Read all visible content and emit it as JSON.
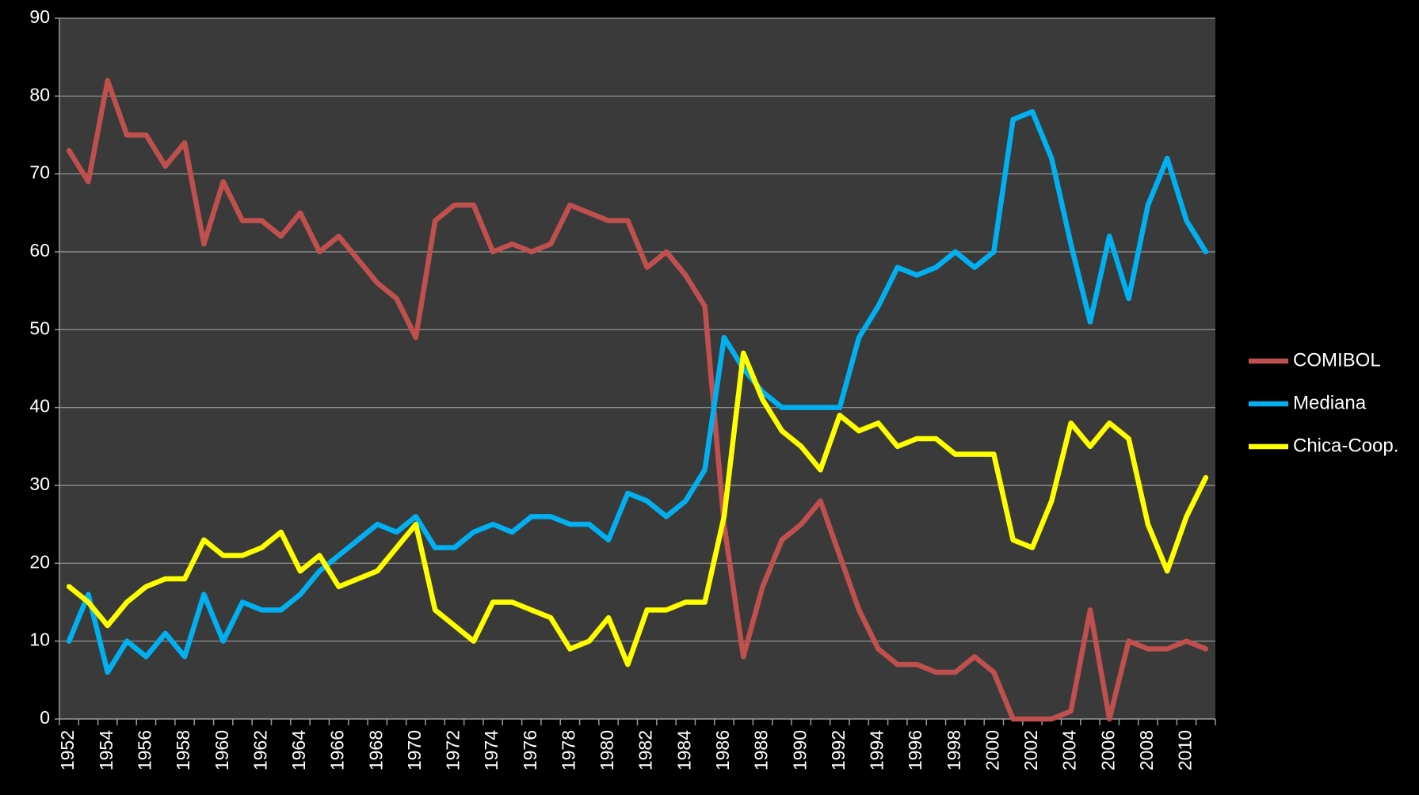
{
  "chart_data": {
    "type": "line",
    "categories": [
      "1952",
      null,
      "1954",
      null,
      "1956",
      null,
      "1958",
      null,
      "1960",
      null,
      "1962",
      null,
      "1964",
      null,
      "1966",
      null,
      "1968",
      null,
      "1970",
      null,
      "1972",
      null,
      "1974",
      null,
      "1976",
      null,
      "1978",
      null,
      "1980",
      null,
      "1982",
      null,
      "1984",
      null,
      "1986",
      null,
      "1988",
      null,
      "1990",
      null,
      "1992",
      null,
      "1994",
      null,
      "1996",
      null,
      "1998",
      null,
      "2000",
      null,
      "2002",
      null,
      "2004",
      null,
      "2006",
      null,
      "2008",
      null,
      "2010",
      null
    ],
    "series": [
      {
        "name": "COMIBOL",
        "color": "#c0504d",
        "values": [
          73,
          69,
          82,
          75,
          75,
          71,
          74,
          61,
          69,
          64,
          64,
          62,
          65,
          60,
          62,
          59,
          56,
          54,
          49,
          64,
          66,
          66,
          60,
          61,
          60,
          61,
          66,
          65,
          64,
          64,
          58,
          60,
          57,
          53,
          25,
          8,
          17,
          23,
          25,
          28,
          21,
          14,
          9,
          7,
          7,
          6,
          6,
          8,
          6,
          0,
          0,
          0,
          1,
          14,
          0,
          10,
          9,
          9,
          10,
          9
        ]
      },
      {
        "name": "Mediana",
        "color": "#00b0f0",
        "values": [
          10,
          16,
          6,
          10,
          8,
          11,
          8,
          16,
          10,
          15,
          14,
          14,
          16,
          19,
          21,
          23,
          25,
          24,
          26,
          22,
          22,
          24,
          25,
          24,
          26,
          26,
          25,
          25,
          23,
          29,
          28,
          26,
          28,
          32,
          49,
          45,
          42,
          40,
          40,
          40,
          40,
          49,
          53,
          58,
          57,
          58,
          60,
          58,
          60,
          77,
          78,
          72,
          61,
          51,
          62,
          54,
          66,
          72,
          64,
          60
        ]
      },
      {
        "name": "Chica-Coop.",
        "color": "#ffff00",
        "values": [
          17,
          15,
          12,
          15,
          17,
          18,
          18,
          23,
          21,
          21,
          22,
          24,
          19,
          21,
          17,
          18,
          19,
          22,
          25,
          14,
          12,
          10,
          15,
          15,
          14,
          13,
          9,
          10,
          13,
          7,
          14,
          14,
          15,
          15,
          26,
          47,
          41,
          37,
          35,
          32,
          39,
          37,
          38,
          35,
          36,
          36,
          34,
          34,
          34,
          23,
          22,
          28,
          38,
          35,
          38,
          36,
          25,
          19,
          26,
          31
        ]
      }
    ],
    "ylim": [
      0,
      90
    ],
    "yticks": [
      0,
      10,
      20,
      30,
      40,
      50,
      60,
      70,
      80,
      90
    ],
    "grid": true,
    "legend": "right"
  }
}
